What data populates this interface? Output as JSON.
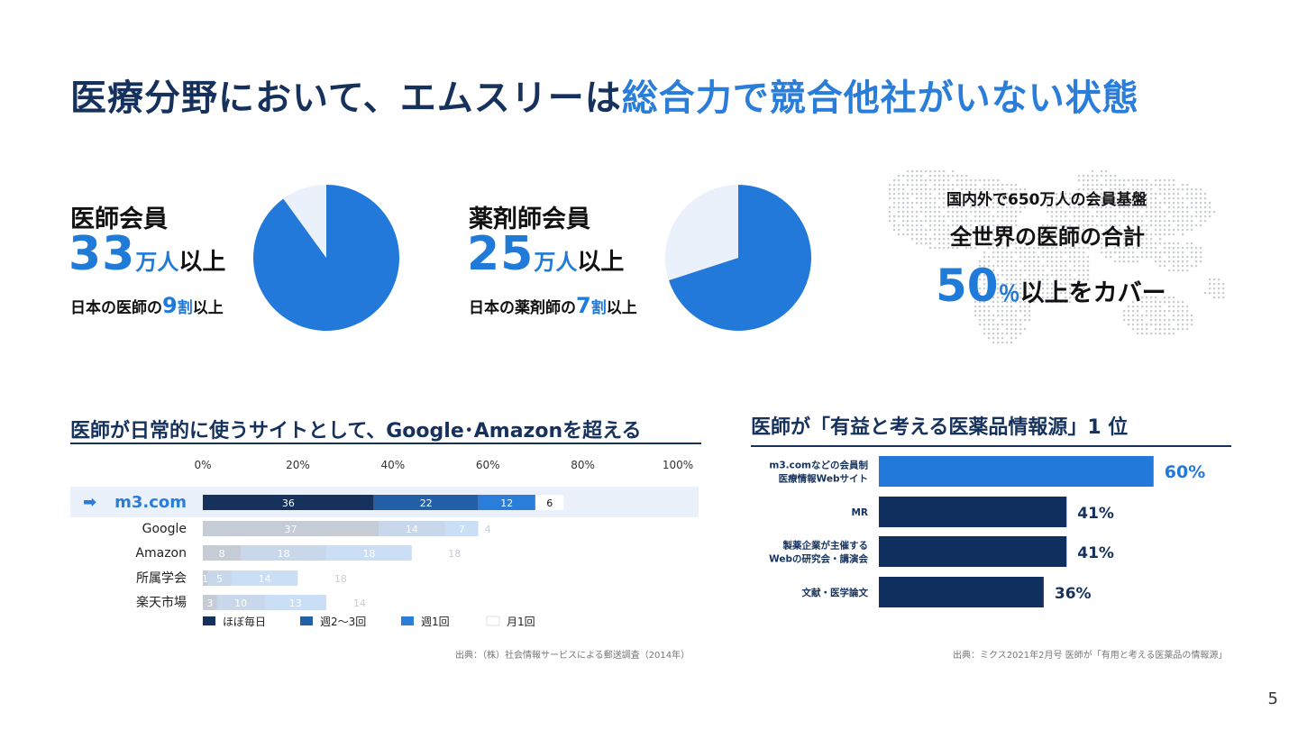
{
  "title": {
    "part1": "医療分野において、エムスリーは",
    "part2": "総合力で競合他社がいない状態"
  },
  "physicians": {
    "heading": "医師会員",
    "number": "33",
    "unit": "万人",
    "suffix": "以上",
    "sub_pre": "日本の医師の",
    "sub_num": "9",
    "sub_unit": "割",
    "sub_post": "以上"
  },
  "pharmacists": {
    "heading": "薬剤師会員",
    "number": "25",
    "unit": "万人",
    "suffix": "以上",
    "sub_pre": "日本の薬剤師の",
    "sub_num": "7",
    "sub_unit": "割",
    "sub_post": "以上"
  },
  "world": {
    "line1": "国内外で650万人の会員基盤",
    "line2": "全世界の医師の合計",
    "number": "50",
    "unit": "％",
    "suffix": "以上をカバー"
  },
  "left_section": {
    "heading": "医師が日常的に使うサイトとして、Google･Amazonを超える",
    "source": "出典：（株）社会情報サービスによる郵送調査（2014年）"
  },
  "right_section": {
    "heading": "医師が「有益と考える医薬品情報源」1 位",
    "source": "出典：ミクス2021年2月号 医師が「有用と考える医薬品の情報源」"
  },
  "page_number": "5",
  "colors": {
    "navy": "#16325c",
    "blue": "#1f7ad8",
    "pale": "#eaf1fb"
  },
  "chart_data": [
    {
      "type": "pie",
      "name": "医師会員",
      "values": [
        90,
        10
      ],
      "colors": [
        "#2279d9",
        "#eaf1fb"
      ]
    },
    {
      "type": "pie",
      "name": "薬剤師会員",
      "values": [
        70,
        30
      ],
      "colors": [
        "#2279d9",
        "#eaf1fb"
      ]
    },
    {
      "type": "bar",
      "orientation": "horizontal",
      "stacked": true,
      "categories": [
        "m3.com",
        "Google",
        "Amazon",
        "所属学会",
        "楽天市場"
      ],
      "xticks": [
        "0%",
        "20%",
        "40%",
        "60%",
        "80%",
        "100%"
      ],
      "xlim": [
        0,
        100
      ],
      "highlight_category": "m3.com",
      "highlight_arrow": "➡",
      "series": [
        {
          "name": "ほぼ毎日",
          "values": [
            36,
            37,
            8,
            1,
            3
          ],
          "color": "#16325c"
        },
        {
          "name": "週2～3回",
          "values": [
            22,
            14,
            18,
            5,
            10
          ],
          "color": "#2460a7"
        },
        {
          "name": "週1回",
          "values": [
            12,
            7,
            18,
            14,
            13
          ],
          "color": "#2a7dd8"
        },
        {
          "name": "月1回",
          "values": [
            6,
            4,
            18,
            18,
            14
          ],
          "color": "#ffffff"
        }
      ]
    },
    {
      "type": "bar",
      "orientation": "horizontal",
      "categories": [
        [
          "m3.comなどの会員制",
          "医療情報Webサイト"
        ],
        [
          "MR"
        ],
        [
          "製薬企業が主催する",
          "Webの研究会・講演会"
        ],
        [
          "文献・医学論文"
        ]
      ],
      "values": [
        60,
        41,
        41,
        36
      ],
      "value_labels": [
        "60%",
        "41%",
        "41%",
        "36%"
      ],
      "colors": [
        "#2279d9",
        "#0f2f5e",
        "#0f2f5e",
        "#0f2f5e"
      ]
    }
  ]
}
